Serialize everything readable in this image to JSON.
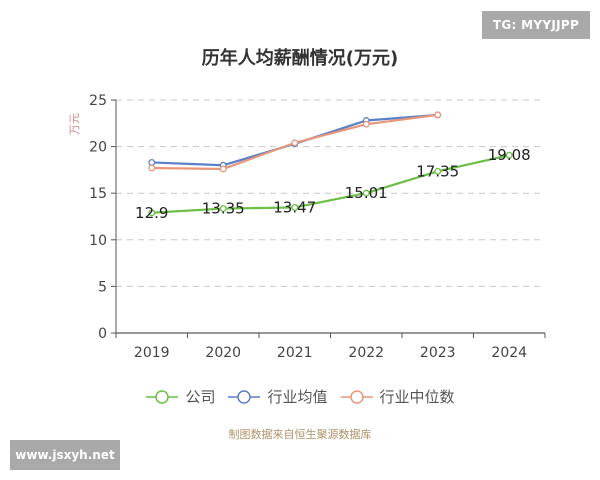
{
  "watermarks": {
    "top_right": "TG: MYYJJPP",
    "bottom_left": "www.jsxyh.net"
  },
  "source_note": "制图数据来自恒生聚源数据库",
  "chart_data": {
    "type": "line",
    "title": "历年人均薪酬情况(万元)",
    "xlabel": "",
    "ylabel": "万元",
    "categories": [
      "2019",
      "2020",
      "2021",
      "2022",
      "2023",
      "2024"
    ],
    "ylim": [
      0,
      25
    ],
    "yticks": [
      0,
      5,
      10,
      15,
      20,
      25
    ],
    "grid": true,
    "legend_position": "bottom",
    "series": [
      {
        "name": "公司",
        "color": "#6bbf47",
        "values": [
          12.9,
          13.35,
          13.47,
          15.01,
          17.35,
          19.08
        ],
        "labels": [
          "12.9",
          "13.35",
          "13.47",
          "15.01",
          "17.35",
          "19.08"
        ]
      },
      {
        "name": "行业均值",
        "color": "#5b7fc7",
        "values": [
          18.3,
          18.0,
          20.3,
          22.8,
          23.4,
          null
        ]
      },
      {
        "name": "行业中位数",
        "color": "#e8967a",
        "values": [
          17.7,
          17.6,
          20.4,
          22.4,
          23.4,
          null
        ]
      }
    ]
  }
}
